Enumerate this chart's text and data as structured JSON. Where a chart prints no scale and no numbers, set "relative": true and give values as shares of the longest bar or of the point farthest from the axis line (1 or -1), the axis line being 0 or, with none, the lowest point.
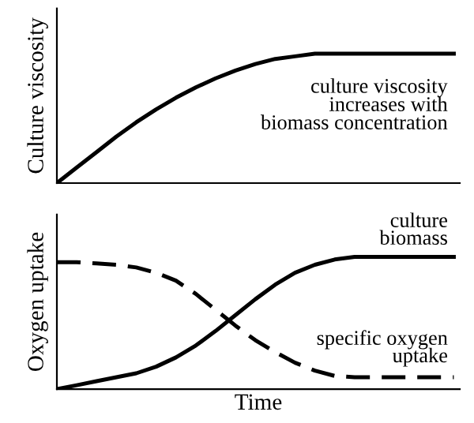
{
  "chart_data": [
    {
      "type": "line",
      "relative": true,
      "ylabel": "Culture viscosity",
      "categories": [
        null,
        null,
        null,
        null,
        null,
        null,
        null,
        null,
        null,
        null,
        null,
        null,
        null,
        null,
        null,
        null,
        null,
        null,
        null,
        null,
        null
      ],
      "series": [
        {
          "color": "#000000",
          "line_style": "solid",
          "values": [
            0,
            0.12,
            0.24,
            0.36,
            0.47,
            0.57,
            0.66,
            0.74,
            0.81,
            0.87,
            0.92,
            0.96,
            0.98,
            1,
            1,
            1,
            1,
            1,
            1,
            1,
            1
          ]
        }
      ],
      "annotations": [
        "culture viscosity\nincreases with\nbiomass concentration"
      ],
      "legend": false,
      "grid": false,
      "tick_labels": false
    },
    {
      "type": "line",
      "relative": true,
      "ylabel": "Oxygen uptake",
      "xlabel": "Time",
      "categories": [
        null,
        null,
        null,
        null,
        null,
        null,
        null,
        null,
        null,
        null,
        null,
        null,
        null,
        null,
        null,
        null,
        null,
        null,
        null,
        null,
        null
      ],
      "series": [
        {
          "name": "culture\nbiomass",
          "color": "#000000",
          "line_style": "solid",
          "values": [
            0,
            0.03,
            0.06,
            0.09,
            0.12,
            0.17,
            0.24,
            0.33,
            0.44,
            0.56,
            0.68,
            0.79,
            0.88,
            0.94,
            0.98,
            1,
            1,
            1,
            1,
            1,
            1
          ]
        },
        {
          "name": "specific oxygen\nuptake",
          "color": "#000000",
          "line_style": "dashed",
          "values": [
            0.96,
            0.96,
            0.95,
            0.94,
            0.92,
            0.88,
            0.82,
            0.72,
            0.6,
            0.48,
            0.37,
            0.28,
            0.2,
            0.14,
            0.1,
            0.09,
            0.09,
            0.09,
            0.09,
            0.09,
            0.09
          ]
        }
      ],
      "legend": false,
      "grid": false,
      "tick_labels": false
    }
  ]
}
